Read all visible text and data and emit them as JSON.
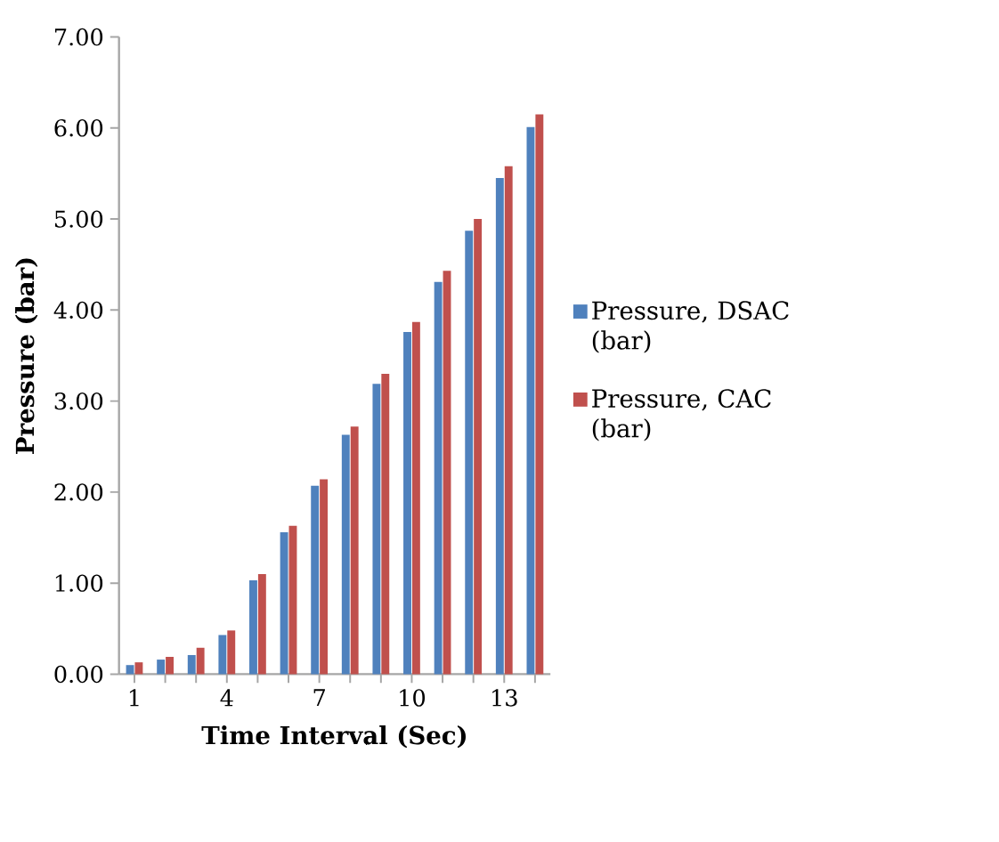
{
  "chart_data": {
    "type": "bar",
    "xlabel": "Time Interval (Sec)",
    "ylabel": "Pressure (bar)",
    "categories": [
      "1",
      null,
      null,
      "4",
      null,
      null,
      "7",
      null,
      null,
      "10",
      null,
      null,
      "13",
      null
    ],
    "series": [
      {
        "name": "Pressure, DSAC (bar)",
        "color": "#4f81bd",
        "values": [
          0.1,
          0.16,
          0.21,
          0.43,
          1.03,
          1.56,
          2.07,
          2.63,
          3.19,
          3.76,
          4.31,
          4.87,
          5.45,
          6.01
        ]
      },
      {
        "name": "Pressure, CAC (bar)",
        "color": "#c0504d",
        "values": [
          0.13,
          0.19,
          0.29,
          0.48,
          1.1,
          1.63,
          2.14,
          2.72,
          3.3,
          3.87,
          4.43,
          5.0,
          5.58,
          6.15
        ]
      }
    ],
    "ylim": [
      0,
      7
    ],
    "yticks": [
      {
        "value": 0,
        "label": "0.00"
      },
      {
        "value": 1,
        "label": "1.00"
      },
      {
        "value": 2,
        "label": "2.00"
      },
      {
        "value": 3,
        "label": "3.00"
      },
      {
        "value": 4,
        "label": "4.00"
      },
      {
        "value": 5,
        "label": "5.00"
      },
      {
        "value": 6,
        "label": "6.00"
      },
      {
        "value": 7,
        "label": "7.00"
      }
    ],
    "legend": "right",
    "grid": false
  }
}
